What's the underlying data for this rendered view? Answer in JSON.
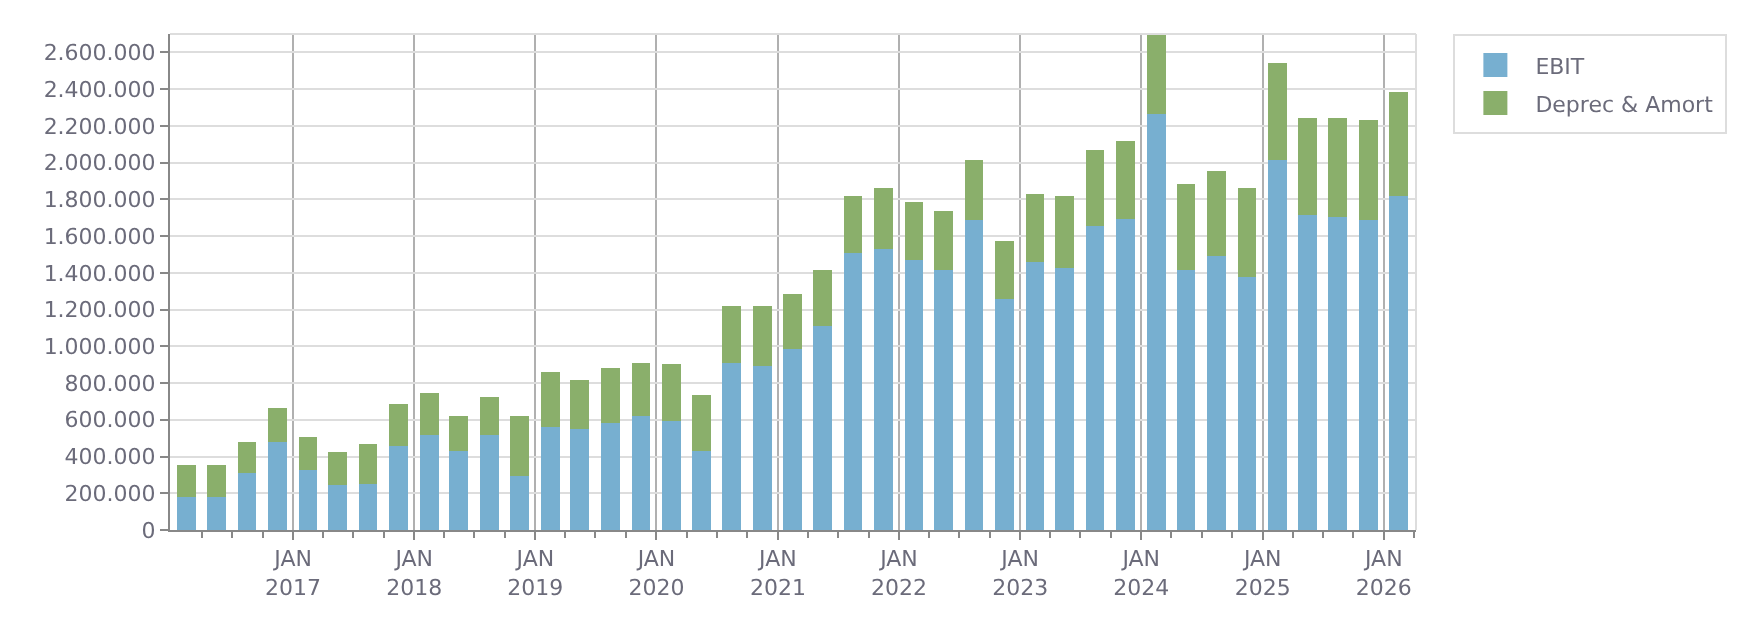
{
  "chart_data": {
    "type": "bar",
    "stacked": true,
    "x": [
      "2016-02-15",
      "2016-05-15",
      "2016-08-15",
      "2016-11-15",
      "2017-02-15",
      "2017-05-15",
      "2017-08-15",
      "2017-11-15",
      "2018-02-15",
      "2018-05-15",
      "2018-08-15",
      "2018-11-15",
      "2019-02-15",
      "2019-05-15",
      "2019-08-15",
      "2019-11-15",
      "2020-02-15",
      "2020-05-15",
      "2020-08-15",
      "2020-11-15",
      "2021-02-15",
      "2021-05-15",
      "2021-08-15",
      "2021-11-15",
      "2022-02-15",
      "2022-05-15",
      "2022-08-15",
      "2022-11-15",
      "2023-02-15",
      "2023-05-15",
      "2023-08-15",
      "2023-11-15",
      "2024-02-15",
      "2024-05-15",
      "2024-08-15",
      "2024-11-15",
      "2025-02-15",
      "2025-05-15",
      "2025-08-15",
      "2025-11-15",
      "2026-02-15"
    ],
    "series": [
      {
        "name": "EBIT",
        "color": "#77afd0",
        "values": [
          182000,
          182000,
          313000,
          478000,
          327000,
          244000,
          251000,
          457000,
          519000,
          430000,
          519000,
          292000,
          561000,
          550000,
          581000,
          622000,
          595000,
          430000,
          911000,
          891000,
          987000,
          1111000,
          1510000,
          1530000,
          1468000,
          1417000,
          1685000,
          1255000,
          1458000,
          1427000,
          1654000,
          1695000,
          2263000,
          1417000,
          1489000,
          1376000,
          2015000,
          1716000,
          1706000,
          1685000,
          1819000
        ]
      },
      {
        "name": "Deprec & Amort",
        "color": "#8aaf6b",
        "values": [
          172000,
          172000,
          165000,
          186000,
          182000,
          182000,
          217000,
          227000,
          227000,
          192000,
          207000,
          330000,
          299000,
          268000,
          299000,
          289000,
          306000,
          306000,
          310000,
          330000,
          296000,
          306000,
          309000,
          330000,
          320000,
          320000,
          330000,
          317000,
          371000,
          392000,
          413000,
          423000,
          433000,
          464000,
          464000,
          484000,
          526000,
          526000,
          536000,
          547000,
          568000
        ]
      }
    ],
    "xlim": [
      "2015-12-27",
      "2026-04-08"
    ],
    "xticks": [
      {
        "value": "2016-04-01",
        "label": null
      },
      {
        "value": "2016-07-01",
        "label": null
      },
      {
        "value": "2016-10-01",
        "label": null
      },
      {
        "value": "2017-01-01",
        "label": "JAN\n2017"
      },
      {
        "value": "2017-04-01",
        "label": null
      },
      {
        "value": "2017-07-01",
        "label": null
      },
      {
        "value": "2017-10-01",
        "label": null
      },
      {
        "value": "2018-01-01",
        "label": "JAN\n2018"
      },
      {
        "value": "2018-04-01",
        "label": null
      },
      {
        "value": "2018-07-01",
        "label": null
      },
      {
        "value": "2018-10-01",
        "label": null
      },
      {
        "value": "2019-01-01",
        "label": "JAN\n2019"
      },
      {
        "value": "2019-04-01",
        "label": null
      },
      {
        "value": "2019-07-01",
        "label": null
      },
      {
        "value": "2019-10-01",
        "label": null
      },
      {
        "value": "2020-01-01",
        "label": "JAN\n2020"
      },
      {
        "value": "2020-04-01",
        "label": null
      },
      {
        "value": "2020-07-01",
        "label": null
      },
      {
        "value": "2020-10-01",
        "label": null
      },
      {
        "value": "2021-01-01",
        "label": "JAN\n2021"
      },
      {
        "value": "2021-04-01",
        "label": null
      },
      {
        "value": "2021-07-01",
        "label": null
      },
      {
        "value": "2021-10-01",
        "label": null
      },
      {
        "value": "2022-01-01",
        "label": "JAN\n2022"
      },
      {
        "value": "2022-04-01",
        "label": null
      },
      {
        "value": "2022-07-01",
        "label": null
      },
      {
        "value": "2022-10-01",
        "label": null
      },
      {
        "value": "2023-01-01",
        "label": "JAN\n2023"
      },
      {
        "value": "2023-04-01",
        "label": null
      },
      {
        "value": "2023-07-01",
        "label": null
      },
      {
        "value": "2023-10-01",
        "label": null
      },
      {
        "value": "2024-01-01",
        "label": "JAN\n2024"
      },
      {
        "value": "2024-04-01",
        "label": null
      },
      {
        "value": "2024-07-01",
        "label": null
      },
      {
        "value": "2024-10-01",
        "label": null
      },
      {
        "value": "2025-01-01",
        "label": "JAN\n2025"
      },
      {
        "value": "2025-04-01",
        "label": null
      },
      {
        "value": "2025-07-01",
        "label": null
      },
      {
        "value": "2025-10-01",
        "label": null
      },
      {
        "value": "2026-01-01",
        "label": "JAN\n2026"
      },
      {
        "value": "2026-04-01",
        "label": null
      }
    ],
    "ylim": [
      0,
      2700000
    ],
    "yticks": [
      {
        "value": 0,
        "label": "0"
      },
      {
        "value": 200000,
        "label": "200.000"
      },
      {
        "value": 400000,
        "label": "400.000"
      },
      {
        "value": 600000,
        "label": "600.000"
      },
      {
        "value": 800000,
        "label": "800.000"
      },
      {
        "value": 1000000,
        "label": "1.000.000"
      },
      {
        "value": 1200000,
        "label": "1.200.000"
      },
      {
        "value": 1400000,
        "label": "1.400.000"
      },
      {
        "value": 1600000,
        "label": "1.600.000"
      },
      {
        "value": 1800000,
        "label": "1.800.000"
      },
      {
        "value": 2000000,
        "label": "2.000.000"
      },
      {
        "value": 2200000,
        "label": "2.200.000"
      },
      {
        "value": 2400000,
        "label": "2.400.000"
      },
      {
        "value": 2600000,
        "label": "2.600.000"
      }
    ],
    "grid": true,
    "legend": "top right"
  }
}
